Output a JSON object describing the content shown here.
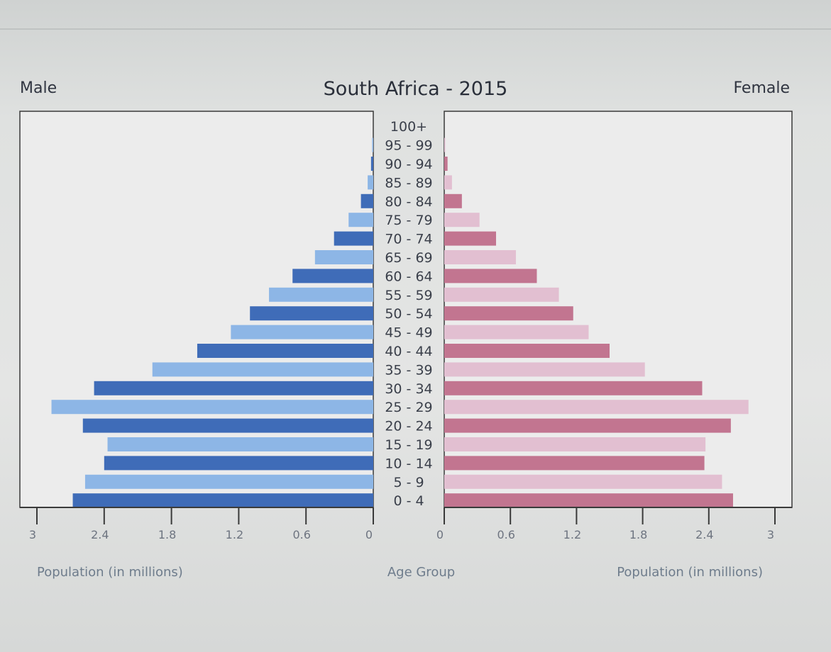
{
  "chart_data": {
    "type": "bar",
    "title": "South Africa - 2015",
    "left_label": "Male",
    "right_label": "Female",
    "categories": [
      "100+",
      "95 - 99",
      "90 - 94",
      "85 - 89",
      "80 - 84",
      "75 - 79",
      "70 - 74",
      "65 - 69",
      "60 - 64",
      "55 - 59",
      "50 - 54",
      "45 - 49",
      "40 - 44",
      "35 - 39",
      "30 - 34",
      "25 - 29",
      "20 - 24",
      "15 - 19",
      "10 - 14",
      "5 - 9",
      "0 - 4"
    ],
    "series": [
      {
        "name": "Male",
        "values": [
          0.0,
          0.01,
          0.02,
          0.05,
          0.11,
          0.22,
          0.35,
          0.52,
          0.72,
          0.93,
          1.1,
          1.27,
          1.57,
          1.97,
          2.49,
          2.87,
          2.59,
          2.37,
          2.4,
          2.57,
          2.68
        ]
      },
      {
        "name": "Female",
        "values": [
          0.0,
          0.01,
          0.03,
          0.07,
          0.16,
          0.32,
          0.47,
          0.65,
          0.84,
          1.04,
          1.17,
          1.31,
          1.5,
          1.82,
          2.34,
          2.76,
          2.6,
          2.37,
          2.36,
          2.52,
          2.62
        ]
      }
    ],
    "xlim": [
      0,
      3
    ],
    "x_ticks_left": [
      "3",
      "2.4",
      "1.8",
      "1.2",
      "0.6",
      "0"
    ],
    "x_ticks_right": [
      "0",
      "0.6",
      "1.2",
      "1.8",
      "2.4",
      "3"
    ],
    "xlabel_left": "Population (in millions)",
    "xlabel_center": "Age Group",
    "xlabel_right": "Population (in millions)",
    "colors": {
      "male_dark": "#3f6cb8",
      "male_light": "#8db6e6",
      "female_dark": "#c27590",
      "female_light": "#e2bfd1"
    }
  }
}
